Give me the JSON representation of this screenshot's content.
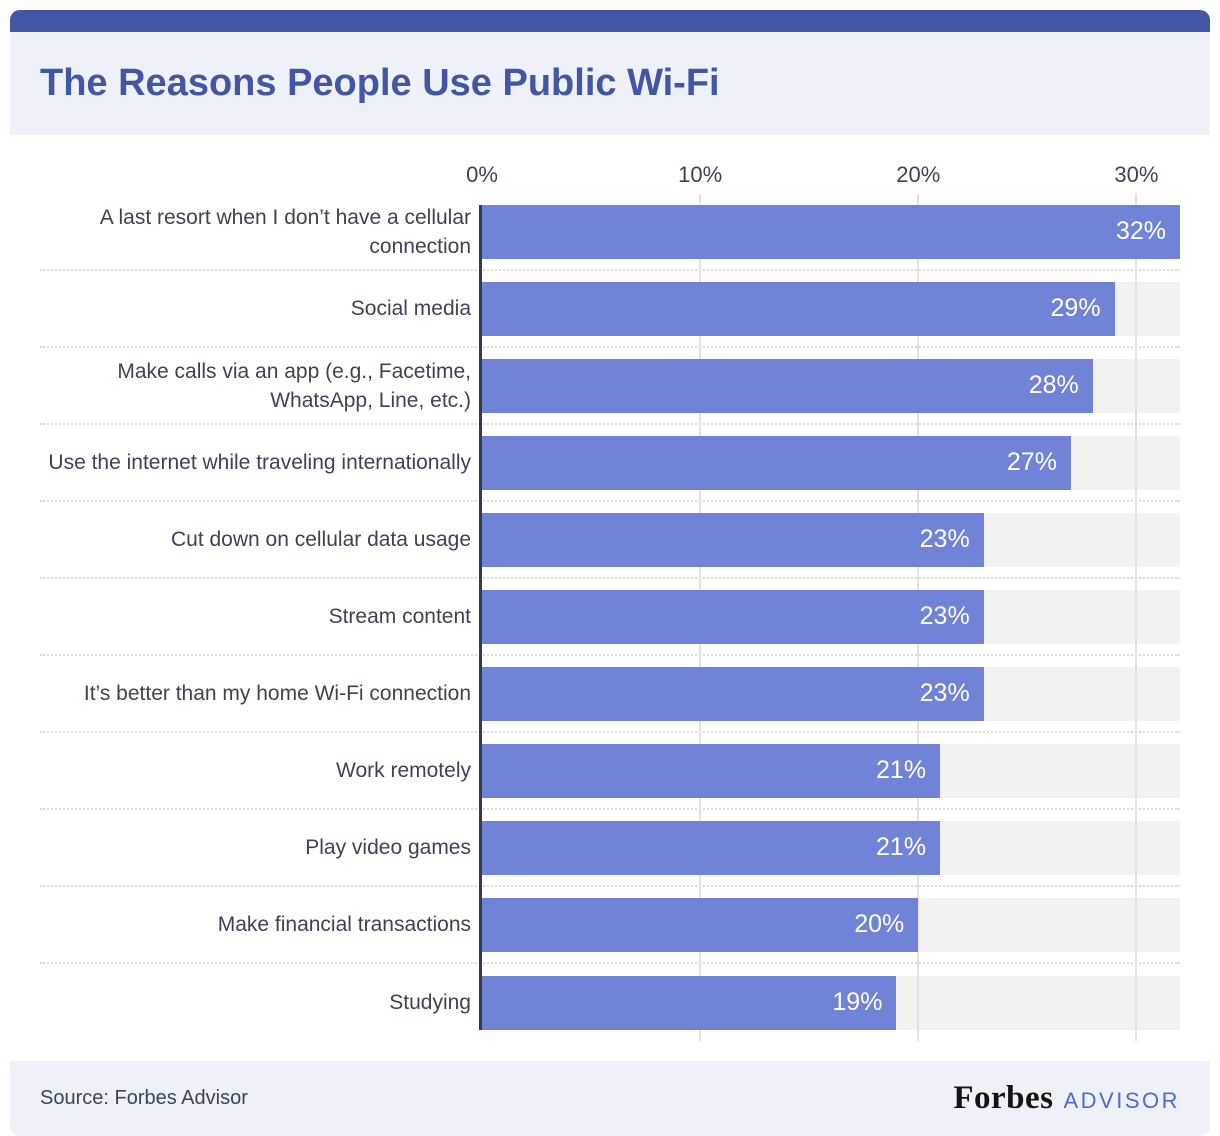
{
  "header": {
    "title": "The Reasons People Use Public Wi-Fi"
  },
  "footer": {
    "source": "Source: Forbes Advisor",
    "brand": "Forbes",
    "brand_suffix": "ADVISOR"
  },
  "colors": {
    "accent_strip": "#4457a5",
    "title_text": "#4356a5",
    "bar_fill": "#7183d7",
    "bar_track": "#f2f2f2",
    "gridline": "#e2e2e2",
    "dotted_separator": "#d9d9d9",
    "axis_line": "#323c4e",
    "label_text": "#3b4457",
    "band_background": "#eef1f8",
    "value_label_text": "#ffffff",
    "advisor_blue": "#4a6bd8"
  },
  "chart_data": {
    "type": "bar",
    "orientation": "horizontal",
    "title": "The Reasons People Use Public Wi-Fi",
    "xlabel": "",
    "ylabel": "",
    "categories": [
      "A last resort when I don’t have a cellular connection",
      "Social media",
      "Make calls via an app (e.g., Facetime, WhatsApp, Line, etc.)",
      "Use the internet while traveling internationally",
      "Cut down on cellular data usage",
      "Stream content",
      "It’s better than my home Wi-Fi connection",
      "Work remotely",
      "Play video games",
      "Make financial transactions",
      "Studying"
    ],
    "values": [
      32,
      29,
      28,
      27,
      23,
      23,
      23,
      21,
      21,
      20,
      19
    ],
    "value_labels": [
      "32%",
      "29%",
      "28%",
      "27%",
      "23%",
      "23%",
      "23%",
      "21%",
      "21%",
      "20%",
      "19%"
    ],
    "x_ticks": [
      {
        "value": 0,
        "label": "0%"
      },
      {
        "value": 10,
        "label": "10%"
      },
      {
        "value": 20,
        "label": "20%"
      },
      {
        "value": 30,
        "label": "30%"
      }
    ],
    "xlim": [
      0,
      32
    ],
    "grid": true,
    "legend": false
  }
}
